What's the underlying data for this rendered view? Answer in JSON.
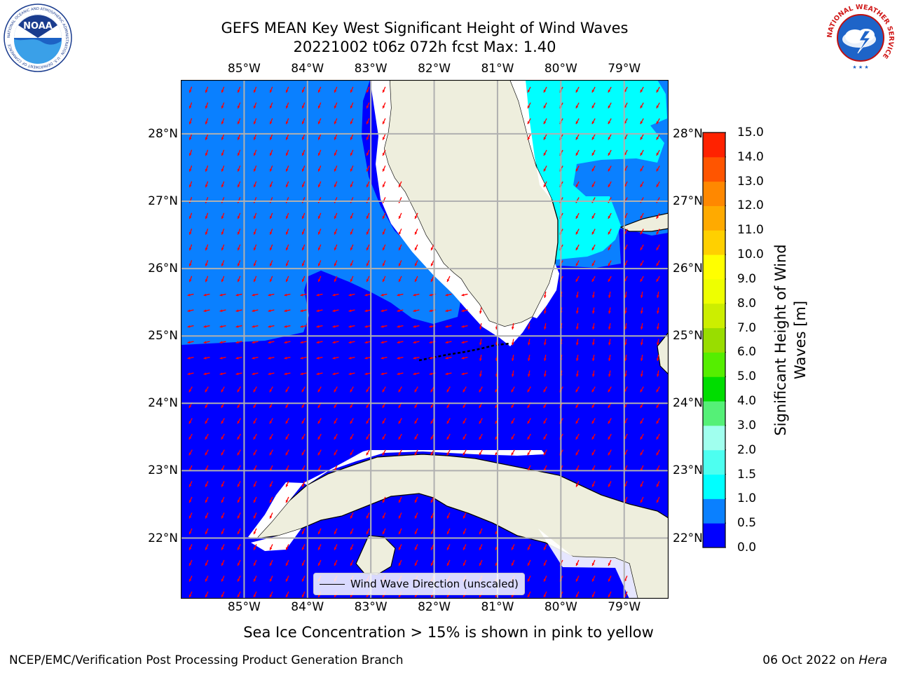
{
  "title": {
    "line1": "GEFS MEAN Key West Significant Height of Wind Waves",
    "line2": "20221002 t06z 072h fcst   Max: 1.40"
  },
  "map": {
    "lon_ticks": [
      "85°W",
      "84°W",
      "83°W",
      "82°W",
      "81°W",
      "80°W",
      "79°W"
    ],
    "lat_ticks": [
      "28°N",
      "27°N",
      "26°N",
      "25°N",
      "24°N",
      "23°N",
      "22°N"
    ],
    "lon_range": [
      -86.0,
      -78.3
    ],
    "lat_range": [
      21.1,
      28.8
    ],
    "legend_label": "Wind Wave Direction (unscaled)",
    "arrow_color": "#ff0000"
  },
  "colorbar": {
    "label_line1": "Significant Height of Wind",
    "label_line2": "Waves [m]",
    "ticks": [
      "0.0",
      "0.5",
      "1.0",
      "1.5",
      "2.0",
      "3.0",
      "4.0",
      "5.0",
      "6.0",
      "7.0",
      "8.0",
      "9.0",
      "10.0",
      "11.0",
      "12.0",
      "13.0",
      "14.0",
      "15.0"
    ],
    "colors": [
      "#0000ff",
      "#0a80ff",
      "#00ffff",
      "#4dfff0",
      "#a0ffee",
      "#55f077",
      "#00dd00",
      "#55ee00",
      "#99dd00",
      "#ccee00",
      "#eeff00",
      "#ffff00",
      "#ffd000",
      "#ffaa00",
      "#ff8800",
      "#ff5500",
      "#ff2200"
    ]
  },
  "caption": "Sea Ice Concentration > 15% is shown in pink to yellow",
  "footer": {
    "left": "NCEP/EMC/Verification Post Processing Product Generation Branch",
    "right_date": "06 Oct 2022 on ",
    "right_host": "Hera"
  },
  "logos": {
    "noaa_text": "NOAA",
    "noaa_ring": "NATIONAL OCEANIC AND ATMOSPHERIC ADMINISTRATION · U.S. DEPARTMENT OF COMMERCE",
    "nws_ring": "NATIONAL WEATHER SERVICE"
  }
}
